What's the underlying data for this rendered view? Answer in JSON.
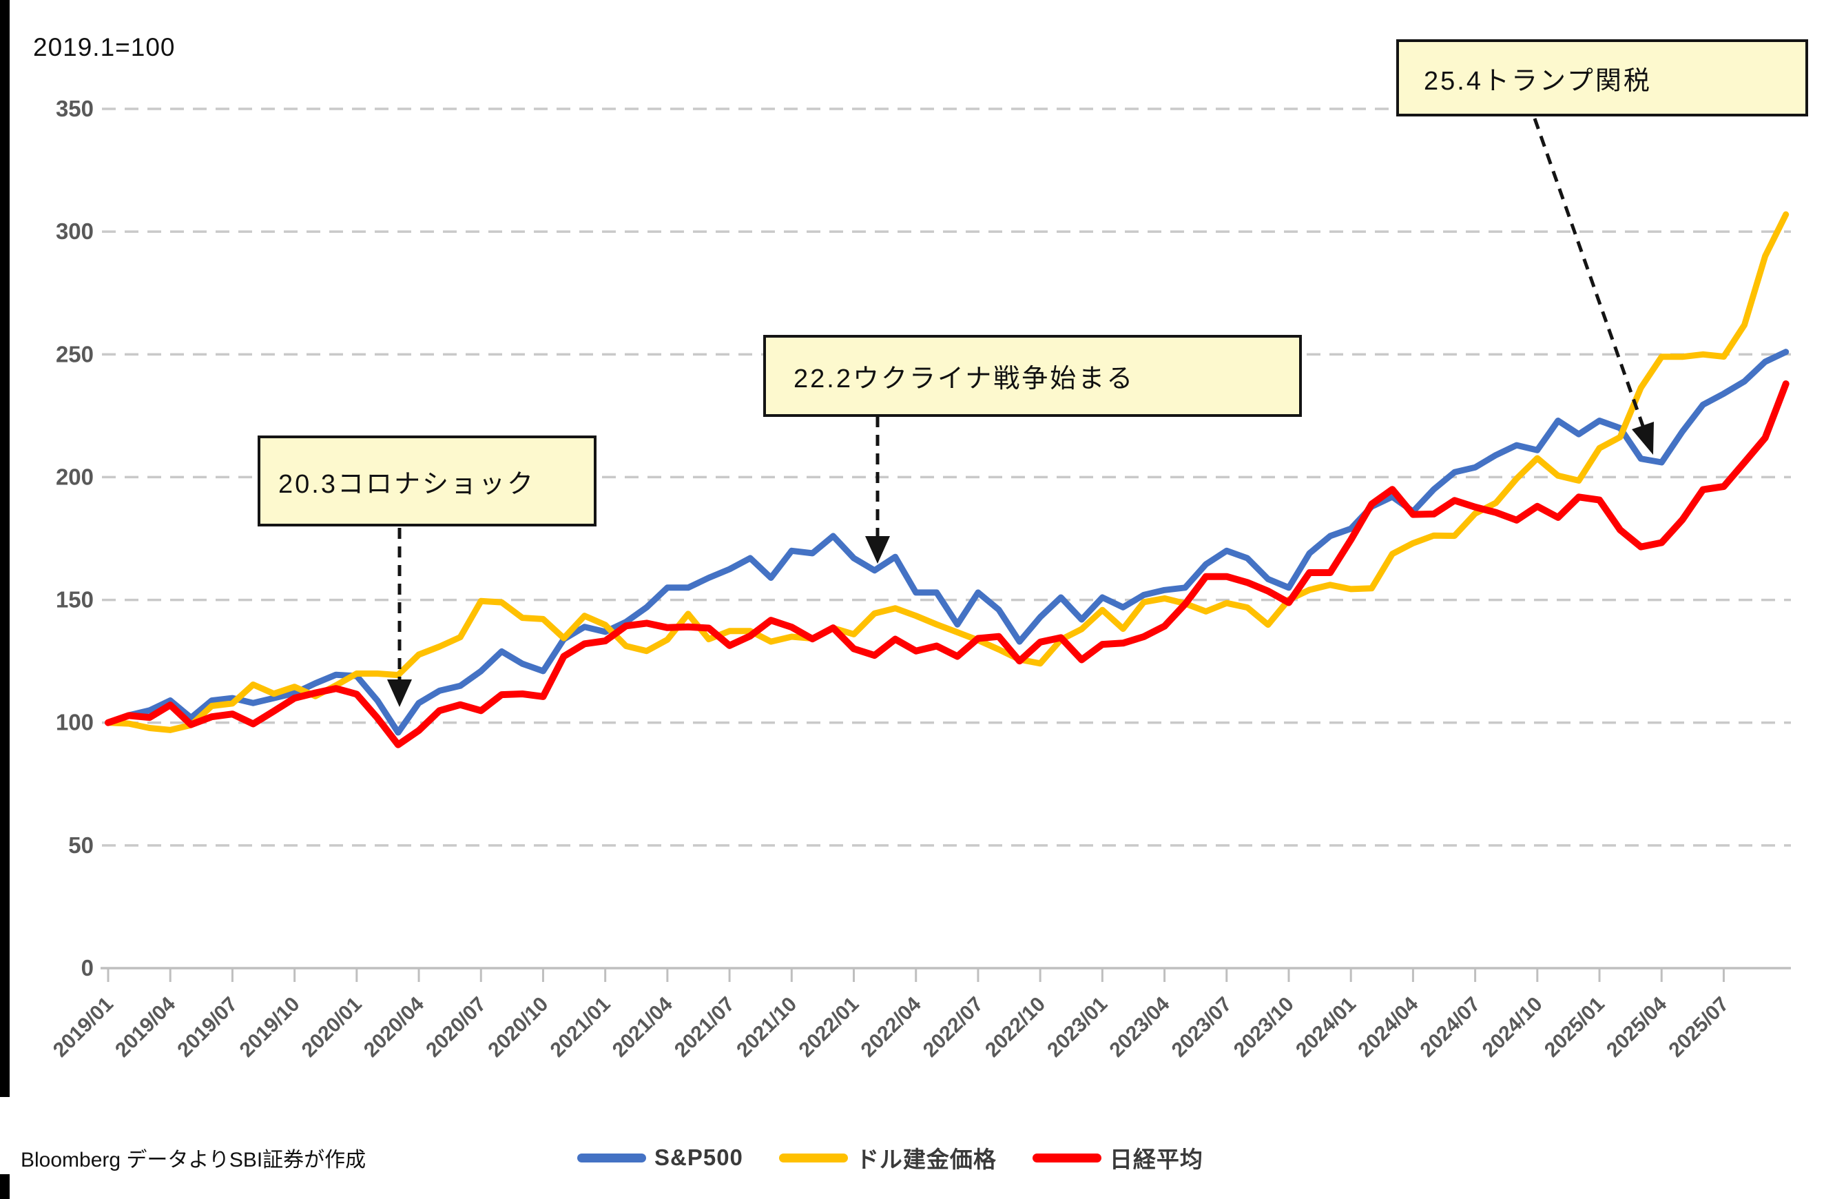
{
  "title": "2019.1=100",
  "source": "Bloomberg データよりSBI証券が作成",
  "colors": {
    "sp500": "#4472C4",
    "gold": "#FFC000",
    "nikkei": "#FF0000",
    "gridline": "#C9C9C9",
    "axis": "#BFBFBF",
    "tick_label": "#595959",
    "annotation_fill": "#FDF9CE",
    "annotation_border": "#141414"
  },
  "legend": [
    {
      "id": "sp500",
      "label": "S&P500",
      "color": "#4472C4"
    },
    {
      "id": "gold",
      "label": "ドル建金価格",
      "color": "#FFC000"
    },
    {
      "id": "nikkei",
      "label": "日経平均",
      "color": "#FF0000"
    }
  ],
  "annotations": {
    "corona": {
      "label": "20.3コロナショック"
    },
    "ukraine": {
      "label": "22.2ウクライナ戦争始まる"
    },
    "trump": {
      "label": "25.4トランプ関税"
    }
  },
  "chart_data": {
    "type": "line",
    "title": "2019.1=100",
    "xlabel": "",
    "ylabel": "",
    "ylim": [
      0,
      350
    ],
    "y_ticks": [
      0,
      50,
      100,
      150,
      200,
      250,
      300,
      350
    ],
    "grid": "horizontal-dashed",
    "legend_position": "bottom",
    "x_start": "2019/01",
    "x_end": "2025/10",
    "x_interval_months": 1,
    "x_tick_labels": [
      "2019/01",
      "2019/04",
      "2019/07",
      "2019/10",
      "2020/01",
      "2020/04",
      "2020/07",
      "2020/10",
      "2021/01",
      "2021/04",
      "2021/07",
      "2021/10",
      "2022/01",
      "2022/04",
      "2022/07",
      "2022/10",
      "2023/01",
      "2023/04",
      "2023/07",
      "2023/10",
      "2024/01",
      "2024/04",
      "2024/07",
      "2024/10",
      "2025/01",
      "2025/04",
      "2025/07"
    ],
    "annotations": [
      {
        "id": "corona",
        "label": "20.3コロナショック",
        "points_to": "2020/03"
      },
      {
        "id": "ukraine",
        "label": "22.2ウクライナ戦争始まる",
        "points_to": "2022/02"
      },
      {
        "id": "trump",
        "label": "25.4トランプ関税",
        "points_to": "2025/04"
      }
    ],
    "series": [
      {
        "name": "S&P500",
        "color": "#4472C4",
        "values": [
          100,
          103,
          105,
          109,
          102,
          109,
          110,
          108,
          110,
          112,
          116,
          119.5,
          119,
          109,
          96,
          108,
          113,
          115,
          121,
          129,
          124,
          121,
          134,
          139,
          137,
          141,
          147,
          155,
          155,
          159,
          162.5,
          167,
          159,
          170,
          169,
          176,
          167,
          162,
          167.5,
          153,
          153,
          140,
          153,
          146,
          133,
          143,
          151,
          142,
          151,
          147,
          152,
          154,
          155,
          164.5,
          170,
          167,
          158.5,
          155,
          169,
          176,
          179,
          188,
          192,
          186,
          195,
          202,
          204,
          209,
          213,
          211,
          223,
          217.5,
          223,
          220,
          207.5,
          206,
          218.5,
          229.5,
          234,
          239,
          247,
          251
        ]
      },
      {
        "name": "ドル建金価格",
        "color": "#FFC000",
        "values": [
          100,
          99.6,
          97.8,
          97,
          99,
          106.8,
          107.8,
          115.5,
          111.8,
          114.6,
          110.8,
          115.2,
          120,
          120,
          119.4,
          127.7,
          131,
          134.8,
          149.5,
          149,
          142.7,
          142.2,
          134.4,
          143.5,
          139.8,
          131.2,
          129.2,
          133.8,
          144.3,
          134,
          137.3,
          137.3,
          133,
          135,
          134.3,
          138.5,
          136,
          144.5,
          146.6,
          143.5,
          140,
          136.8,
          133.6,
          129.8,
          125.7,
          124.1,
          133.8,
          138.1,
          145.9,
          138.2,
          149.1,
          150.6,
          148.5,
          145.3,
          148.7,
          146.9,
          139.9,
          150.1,
          154.1,
          156.1,
          154.4,
          154.7,
          168.7,
          173.1,
          176.2,
          176.1,
          185.2,
          189.5,
          199.4,
          207.7,
          200.6,
          198.6,
          211.8,
          216.3,
          236.4,
          249,
          249,
          250,
          249.1,
          262,
          290,
          307
        ]
      },
      {
        "name": "日経平均",
        "color": "#FF0000",
        "values": [
          100,
          102.9,
          102.1,
          107.2,
          99.2,
          102.4,
          103.5,
          99.5,
          104.7,
          110,
          112.1,
          113.9,
          111.6,
          101.9,
          91,
          96.8,
          104.9,
          107.3,
          104.9,
          111.4,
          111.7,
          110.6,
          127,
          132.1,
          133.3,
          139.4,
          140.5,
          138.7,
          139,
          138.5,
          131.4,
          135.3,
          141.7,
          138.9,
          134.1,
          138.6,
          130.1,
          127.4,
          134,
          129.2,
          131.2,
          127,
          134.3,
          135.1,
          125.1,
          132.8,
          134.6,
          125.6,
          131.9,
          132.4,
          135,
          139.3,
          148.3,
          159.5,
          159.5,
          157.1,
          153.6,
          148.9,
          161.1,
          161.1,
          174.5,
          189,
          195,
          184.8,
          185,
          190.5,
          187.8,
          185.6,
          182.5,
          188.1,
          183.6,
          191.9,
          190.7,
          178.5,
          171.6,
          173.3,
          182.6,
          194.9,
          196.2,
          206,
          216,
          238
        ]
      }
    ]
  }
}
